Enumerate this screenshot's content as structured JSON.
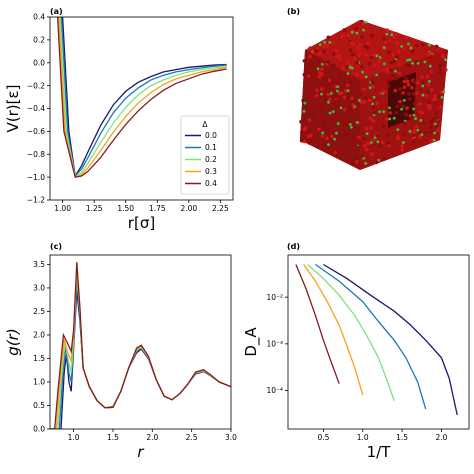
{
  "panels": {
    "a": {
      "label": "(a)"
    },
    "b": {
      "label": "(b)"
    },
    "c": {
      "label": "(c)"
    },
    "d": {
      "label": "(d)"
    }
  },
  "colors": [
    "#191970",
    "#1f77b4",
    "#7fe27f",
    "#ff9f1c",
    "#7f1f1f"
  ],
  "chart_data": [
    {
      "panel": "a",
      "type": "line",
      "xlabel": "r[σ]",
      "ylabel": "V(r)[ε]",
      "xlim": [
        0.9,
        2.35
      ],
      "ylim": [
        -1.2,
        0.4
      ],
      "xticks": [
        1.0,
        1.25,
        1.5,
        1.75,
        2.0,
        2.25
      ],
      "xtick_labels": [
        "1.00",
        "1.25",
        "1.50",
        "1.75",
        "2.00",
        "2.25"
      ],
      "yticks": [
        -1.2,
        -1.0,
        -0.8,
        -0.6,
        -0.4,
        -0.2,
        0.0,
        0.2,
        0.4
      ],
      "ytick_labels": [
        "−1.2",
        "−1.0",
        "−0.8",
        "−0.6",
        "−0.4",
        "−0.2",
        "0.0",
        "0.2",
        "0.4"
      ],
      "legend": {
        "title": "Δ",
        "placement": "lower-right",
        "entries": [
          "0.0",
          "0.1",
          "0.2",
          "0.3",
          "0.4"
        ]
      },
      "series": [
        {
          "name": "0.0",
          "x": [
            1.0,
            1.05,
            1.1,
            1.15,
            1.2,
            1.3,
            1.4,
            1.5,
            1.6,
            1.7,
            1.8,
            1.9,
            2.0,
            2.1,
            2.2,
            2.3
          ],
          "y": [
            0.4,
            -0.6,
            -0.99,
            -0.9,
            -0.78,
            -0.55,
            -0.37,
            -0.25,
            -0.17,
            -0.12,
            -0.08,
            -0.06,
            -0.04,
            -0.03,
            -0.02,
            -0.015
          ]
        },
        {
          "name": "0.1",
          "x": [
            0.99,
            1.04,
            1.1,
            1.15,
            1.2,
            1.3,
            1.4,
            1.5,
            1.6,
            1.7,
            1.8,
            1.9,
            2.0,
            2.1,
            2.2,
            2.3
          ],
          "y": [
            0.4,
            -0.6,
            -0.99,
            -0.93,
            -0.83,
            -0.62,
            -0.44,
            -0.31,
            -0.22,
            -0.15,
            -0.11,
            -0.08,
            -0.06,
            -0.045,
            -0.03,
            -0.02
          ]
        },
        {
          "name": "0.2",
          "x": [
            0.98,
            1.03,
            1.1,
            1.15,
            1.2,
            1.3,
            1.4,
            1.5,
            1.6,
            1.7,
            1.8,
            1.9,
            2.0,
            2.1,
            2.2,
            2.3
          ],
          "y": [
            0.4,
            -0.6,
            -1.0,
            -0.96,
            -0.88,
            -0.7,
            -0.53,
            -0.39,
            -0.28,
            -0.2,
            -0.15,
            -0.11,
            -0.08,
            -0.06,
            -0.045,
            -0.03
          ]
        },
        {
          "name": "0.3",
          "x": [
            0.97,
            1.02,
            1.1,
            1.15,
            1.2,
            1.3,
            1.4,
            1.5,
            1.6,
            1.7,
            1.8,
            1.9,
            2.0,
            2.1,
            2.2,
            2.3
          ],
          "y": [
            0.4,
            -0.6,
            -1.0,
            -0.98,
            -0.92,
            -0.77,
            -0.61,
            -0.47,
            -0.35,
            -0.26,
            -0.19,
            -0.14,
            -0.11,
            -0.08,
            -0.06,
            -0.04
          ]
        },
        {
          "name": "0.4",
          "x": [
            0.96,
            1.01,
            1.1,
            1.15,
            1.2,
            1.3,
            1.4,
            1.5,
            1.6,
            1.7,
            1.8,
            1.9,
            2.0,
            2.1,
            2.2,
            2.3
          ],
          "y": [
            0.4,
            -0.6,
            -1.0,
            -0.99,
            -0.95,
            -0.83,
            -0.68,
            -0.54,
            -0.42,
            -0.32,
            -0.24,
            -0.18,
            -0.14,
            -0.1,
            -0.075,
            -0.055
          ]
        }
      ]
    },
    {
      "panel": "c",
      "type": "line",
      "xlabel": "r",
      "ylabel": "g(r)",
      "xlim": [
        0.7,
        3.0
      ],
      "ylim": [
        0.0,
        3.7
      ],
      "xticks": [
        1.0,
        1.5,
        2.0,
        2.5,
        3.0
      ],
      "xtick_labels": [
        "1.0",
        "1.5",
        "2.0",
        "2.5",
        "3.0"
      ],
      "yticks": [
        0.0,
        0.5,
        1.0,
        1.5,
        2.0,
        2.5,
        3.0,
        3.5
      ],
      "ytick_labels": [
        "0.0",
        "0.5",
        "1.0",
        "1.5",
        "2.0",
        "2.5",
        "3.0",
        "3.5"
      ],
      "series": [
        {
          "name": "0.0",
          "x": [
            0.7,
            0.84,
            0.88,
            0.91,
            0.94,
            0.97,
            1.0,
            1.04,
            1.08,
            1.12,
            1.2,
            1.3,
            1.4,
            1.5,
            1.6,
            1.7,
            1.8,
            1.86,
            1.95,
            2.05,
            2.15,
            2.25,
            2.35,
            2.45,
            2.55,
            2.65,
            2.75,
            2.85,
            3.0
          ],
          "y": [
            0.0,
            0.0,
            1.2,
            1.6,
            1.0,
            0.8,
            1.7,
            2.95,
            2.3,
            1.3,
            0.9,
            0.6,
            0.45,
            0.48,
            0.8,
            1.3,
            1.62,
            1.7,
            1.5,
            1.05,
            0.7,
            0.62,
            0.75,
            0.95,
            1.17,
            1.22,
            1.12,
            1.0,
            0.9
          ]
        },
        {
          "name": "0.1",
          "x": [
            0.7,
            0.82,
            0.86,
            0.9,
            0.94,
            0.97,
            1.0,
            1.04,
            1.08,
            1.12,
            1.2,
            1.3,
            1.4,
            1.5,
            1.6,
            1.7,
            1.8,
            1.86,
            1.95,
            2.05,
            2.15,
            2.25,
            2.35,
            2.45,
            2.55,
            2.65,
            2.75,
            2.85,
            3.0
          ],
          "y": [
            0.0,
            0.0,
            1.1,
            1.75,
            1.2,
            1.0,
            1.8,
            3.2,
            2.4,
            1.3,
            0.9,
            0.6,
            0.45,
            0.47,
            0.8,
            1.3,
            1.65,
            1.72,
            1.52,
            1.05,
            0.7,
            0.62,
            0.75,
            0.95,
            1.18,
            1.23,
            1.12,
            1.0,
            0.9
          ]
        },
        {
          "name": "0.2",
          "x": [
            0.7,
            0.8,
            0.84,
            0.89,
            0.94,
            0.97,
            1.0,
            1.04,
            1.08,
            1.12,
            1.2,
            1.3,
            1.4,
            1.5,
            1.6,
            1.7,
            1.8,
            1.86,
            1.95,
            2.05,
            2.15,
            2.25,
            2.35,
            2.45,
            2.55,
            2.65,
            2.75,
            2.85,
            3.0
          ],
          "y": [
            0.0,
            0.0,
            1.0,
            1.85,
            1.4,
            1.2,
            1.9,
            3.35,
            2.5,
            1.3,
            0.9,
            0.6,
            0.45,
            0.47,
            0.8,
            1.3,
            1.68,
            1.74,
            1.53,
            1.05,
            0.7,
            0.62,
            0.75,
            0.95,
            1.19,
            1.24,
            1.13,
            1.0,
            0.9
          ]
        },
        {
          "name": "0.3",
          "x": [
            0.7,
            0.78,
            0.82,
            0.88,
            0.93,
            0.97,
            1.0,
            1.04,
            1.08,
            1.12,
            1.2,
            1.3,
            1.4,
            1.5,
            1.6,
            1.7,
            1.8,
            1.86,
            1.95,
            2.05,
            2.15,
            2.25,
            2.35,
            2.45,
            2.55,
            2.65,
            2.75,
            2.85,
            3.0
          ],
          "y": [
            0.0,
            0.0,
            0.9,
            1.9,
            1.6,
            1.45,
            2.0,
            3.45,
            2.55,
            1.3,
            0.9,
            0.6,
            0.45,
            0.46,
            0.8,
            1.3,
            1.7,
            1.76,
            1.54,
            1.05,
            0.7,
            0.62,
            0.75,
            0.95,
            1.2,
            1.25,
            1.13,
            1.0,
            0.9
          ]
        },
        {
          "name": "0.4",
          "x": [
            0.7,
            0.76,
            0.8,
            0.87,
            0.93,
            0.97,
            1.0,
            1.04,
            1.08,
            1.12,
            1.2,
            1.3,
            1.4,
            1.5,
            1.6,
            1.7,
            1.8,
            1.86,
            1.95,
            2.05,
            2.15,
            2.25,
            2.35,
            2.45,
            2.55,
            2.65,
            2.75,
            2.85,
            3.0
          ],
          "y": [
            0.0,
            0.0,
            0.8,
            2.0,
            1.8,
            1.65,
            2.1,
            3.55,
            2.6,
            1.3,
            0.9,
            0.6,
            0.45,
            0.46,
            0.8,
            1.3,
            1.72,
            1.78,
            1.55,
            1.05,
            0.7,
            0.62,
            0.75,
            0.95,
            1.21,
            1.26,
            1.14,
            1.0,
            0.9
          ]
        }
      ]
    },
    {
      "panel": "d",
      "type": "line",
      "xlabel": "1/T",
      "ylabel": "D_A",
      "yscale": "log",
      "xlim": [
        0.05,
        2.35
      ],
      "ylim": [
        1.5e-05,
        0.08
      ],
      "xticks": [
        0.5,
        1.0,
        1.5,
        2.0
      ],
      "xtick_labels": [
        "0.5",
        "1.0",
        "1.5",
        "2.0"
      ],
      "yticks": [
        0.0001,
        0.001,
        0.01
      ],
      "ytick_labels": [
        "10⁻⁴",
        "10⁻³",
        "10⁻²"
      ],
      "series": [
        {
          "name": "0.0",
          "x": [
            0.5,
            0.8,
            1.1,
            1.4,
            1.6,
            1.8,
            2.0,
            2.1,
            2.2
          ],
          "y": [
            0.05,
            0.025,
            0.011,
            0.005,
            0.0026,
            0.0012,
            0.0005,
            0.00018,
            3e-05
          ]
        },
        {
          "name": "0.1",
          "x": [
            0.4,
            0.7,
            1.0,
            1.2,
            1.4,
            1.55,
            1.7,
            1.8
          ],
          "y": [
            0.05,
            0.022,
            0.008,
            0.003,
            0.0012,
            0.0005,
            0.00015,
            4e-05
          ]
        },
        {
          "name": "0.2",
          "x": [
            0.3,
            0.5,
            0.7,
            0.9,
            1.05,
            1.2,
            1.3,
            1.4
          ],
          "y": [
            0.05,
            0.025,
            0.011,
            0.004,
            0.0015,
            0.0005,
            0.00018,
            6e-05
          ]
        },
        {
          "name": "0.3",
          "x": [
            0.25,
            0.4,
            0.55,
            0.7,
            0.8,
            0.9,
            1.0
          ],
          "y": [
            0.05,
            0.022,
            0.008,
            0.0025,
            0.0009,
            0.0003,
            8e-05
          ]
        },
        {
          "name": "0.4",
          "x": [
            0.15,
            0.28,
            0.4,
            0.5,
            0.6,
            0.7
          ],
          "y": [
            0.05,
            0.015,
            0.004,
            0.0012,
            0.0004,
            0.00014
          ]
        }
      ]
    }
  ]
}
